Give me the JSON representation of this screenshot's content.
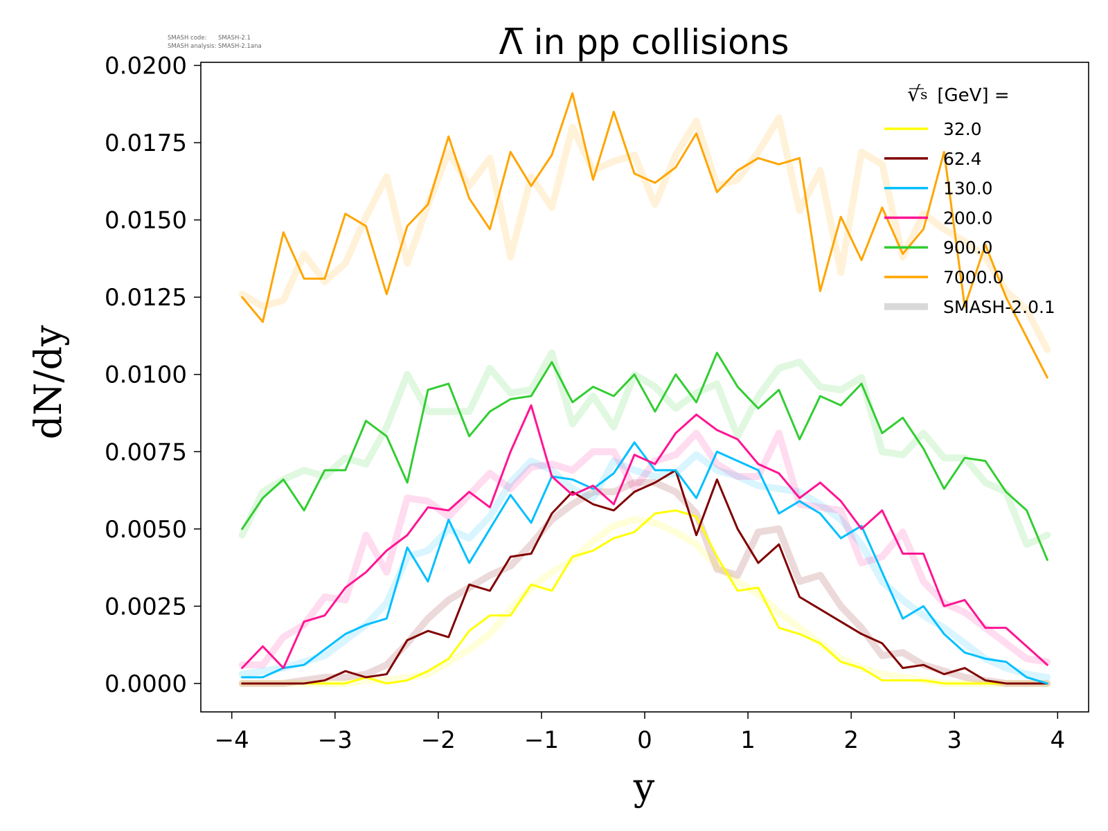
{
  "watermark": {
    "line1_label": "SMASH code:",
    "line1_value": "SMASH-2.1",
    "line2_label": "SMASH analysis:",
    "line2_value": "SMASH-2.1ana"
  },
  "chart_data": {
    "type": "line",
    "title": "Λ̅ in pp collisions",
    "xlabel": "y",
    "ylabel": "dN/dy",
    "xlim": [
      -4.3,
      4.3
    ],
    "ylim": [
      -0.00092,
      0.0201
    ],
    "xticks": [
      -4,
      -3,
      -2,
      -1,
      0,
      1,
      2,
      3,
      4
    ],
    "xtick_labels": [
      "−4",
      "−3",
      "−2",
      "−1",
      "0",
      "1",
      "2",
      "3",
      "4"
    ],
    "yticks": [
      0,
      0.0025,
      0.005,
      0.0075,
      0.01,
      0.0125,
      0.015,
      0.0175,
      0.02
    ],
    "ytick_labels": [
      "0.0000",
      "0.0025",
      "0.0050",
      "0.0075",
      "0.0100",
      "0.0125",
      "0.0150",
      "0.0175",
      "0.0200"
    ],
    "legend": {
      "title_radical": "√",
      "title_var": "s",
      "title_rest": "[GeV] =",
      "position": "upper-right",
      "reference_label": "SMASH-2.0.1",
      "reference_color": "#d9d9d9"
    },
    "x": [
      -3.9,
      -3.7,
      -3.5,
      -3.3,
      -3.1,
      -2.9,
      -2.7,
      -2.5,
      -2.3,
      -2.1,
      -1.9,
      -1.7,
      -1.5,
      -1.3,
      -1.1,
      -0.9,
      -0.7,
      -0.5,
      -0.3,
      -0.1,
      0.1,
      0.3,
      0.5,
      0.7,
      0.9,
      1.1,
      1.3,
      1.5,
      1.7,
      1.9,
      2.1,
      2.3,
      2.5,
      2.7,
      2.9,
      3.1,
      3.3,
      3.5,
      3.7,
      3.9
    ],
    "series": [
      {
        "name": "32.0",
        "color": "#ffff00",
        "values": [
          0,
          0,
          0,
          0,
          0,
          0,
          0.0002,
          0,
          0.0001,
          0.0004,
          0.0008,
          0.0017,
          0.0022,
          0.0022,
          0.0032,
          0.003,
          0.0041,
          0.0043,
          0.0047,
          0.0049,
          0.0055,
          0.0056,
          0.0054,
          0.0041,
          0.003,
          0.0031,
          0.0018,
          0.0016,
          0.0013,
          0.0007,
          0.0005,
          0.0001,
          0.0001,
          0.0001,
          0,
          0,
          0,
          0,
          0,
          0
        ],
        "reference": [
          0,
          0,
          0,
          0,
          0,
          0,
          0.0001,
          0.0001,
          0.0002,
          0.0003,
          0.0007,
          0.0011,
          0.0016,
          0.0024,
          0.0031,
          0.0036,
          0.004,
          0.0046,
          0.0051,
          0.0053,
          0.0052,
          0.0049,
          0.0045,
          0.0038,
          0.0033,
          0.0029,
          0.0023,
          0.0018,
          0.0013,
          0.0008,
          0.0005,
          0.0003,
          0.0002,
          0.0001,
          0,
          0,
          0,
          0,
          0,
          0
        ]
      },
      {
        "name": "62.4",
        "color": "#800000",
        "values": [
          0,
          0,
          0,
          0,
          0.0001,
          0.0004,
          0.0002,
          0.0003,
          0.0014,
          0.0017,
          0.0015,
          0.0032,
          0.003,
          0.0041,
          0.0042,
          0.0055,
          0.0062,
          0.0058,
          0.0056,
          0.0062,
          0.0065,
          0.0069,
          0.0048,
          0.0066,
          0.005,
          0.0039,
          0.0045,
          0.0028,
          0.0024,
          0.002,
          0.0016,
          0.0013,
          0.0005,
          0.0006,
          0.0003,
          0.0005,
          0.0001,
          0,
          0,
          0
        ],
        "reference": [
          0,
          0,
          0,
          0.0001,
          0.0002,
          0.0002,
          0.0003,
          0.0006,
          0.0013,
          0.0021,
          0.0027,
          0.0031,
          0.0035,
          0.0038,
          0.0045,
          0.0053,
          0.0058,
          0.0062,
          0.0062,
          0.0065,
          0.0065,
          0.0062,
          0.0055,
          0.0037,
          0.0035,
          0.0049,
          0.005,
          0.0033,
          0.0035,
          0.0025,
          0.0018,
          0.0009,
          0.001,
          0.0006,
          0.0004,
          0.0002,
          0.0001,
          0,
          0,
          0
        ]
      },
      {
        "name": "130.0",
        "color": "#00bfff",
        "values": [
          0.0002,
          0.0002,
          0.0005,
          0.0006,
          0.0011,
          0.0016,
          0.0019,
          0.0021,
          0.0044,
          0.0033,
          0.0053,
          0.0039,
          0.005,
          0.0061,
          0.0052,
          0.0067,
          0.0066,
          0.0063,
          0.0068,
          0.0078,
          0.0069,
          0.0069,
          0.006,
          0.0075,
          0.0072,
          0.0069,
          0.0055,
          0.0059,
          0.0055,
          0.0047,
          0.0051,
          0.0036,
          0.0021,
          0.0025,
          0.0016,
          0.001,
          0.0008,
          0.0007,
          0.0002,
          0
        ],
        "reference": [
          0.0003,
          0.0004,
          0.0005,
          0.0007,
          0.0009,
          0.0014,
          0.0019,
          0.0026,
          0.0041,
          0.0043,
          0.005,
          0.0047,
          0.0054,
          0.0065,
          0.0072,
          0.0069,
          0.0063,
          0.006,
          0.0072,
          0.0069,
          0.0067,
          0.0068,
          0.0074,
          0.0069,
          0.0067,
          0.0064,
          0.0063,
          0.0062,
          0.0058,
          0.0053,
          0.0045,
          0.0033,
          0.0027,
          0.0022,
          0.0018,
          0.0013,
          0.0008,
          0.0005,
          0.0003,
          0.0002
        ]
      },
      {
        "name": "200.0",
        "color": "#ff1493",
        "values": [
          0.0005,
          0.0012,
          0.0005,
          0.002,
          0.0022,
          0.0031,
          0.0036,
          0.0043,
          0.0048,
          0.0057,
          0.0056,
          0.0062,
          0.0057,
          0.0075,
          0.009,
          0.0067,
          0.0061,
          0.0064,
          0.0058,
          0.0074,
          0.0071,
          0.0081,
          0.0087,
          0.0082,
          0.0079,
          0.0071,
          0.0068,
          0.006,
          0.0065,
          0.0059,
          0.005,
          0.0056,
          0.0042,
          0.0042,
          0.0025,
          0.0027,
          0.0018,
          0.0018,
          0.0012,
          0.0006
        ],
        "reference": [
          0.0006,
          0.0006,
          0.0015,
          0.0019,
          0.0028,
          0.0027,
          0.0048,
          0.0036,
          0.006,
          0.0059,
          0.0054,
          0.0061,
          0.0068,
          0.0063,
          0.007,
          0.0071,
          0.0069,
          0.0075,
          0.0075,
          0.0063,
          0.0072,
          0.0074,
          0.0081,
          0.0071,
          0.0067,
          0.0067,
          0.0081,
          0.0058,
          0.0057,
          0.0056,
          0.0039,
          0.0041,
          0.0049,
          0.0033,
          0.0026,
          0.0023,
          0.0018,
          0.0013,
          0.0008,
          0.0007
        ]
      },
      {
        "name": "900.0",
        "color": "#32cd32",
        "values": [
          0.005,
          0.006,
          0.0066,
          0.0056,
          0.0069,
          0.0069,
          0.0085,
          0.008,
          0.0065,
          0.0095,
          0.0097,
          0.008,
          0.0088,
          0.0092,
          0.0093,
          0.0104,
          0.0091,
          0.0096,
          0.0093,
          0.01,
          0.0088,
          0.01,
          0.0091,
          0.0107,
          0.0096,
          0.0089,
          0.0095,
          0.0079,
          0.0093,
          0.009,
          0.0097,
          0.0081,
          0.0086,
          0.0076,
          0.0063,
          0.0073,
          0.0072,
          0.0062,
          0.0056,
          0.004
        ],
        "reference": [
          0.0048,
          0.0062,
          0.0066,
          0.0069,
          0.0067,
          0.0073,
          0.0071,
          0.0083,
          0.01,
          0.0088,
          0.0088,
          0.0088,
          0.0102,
          0.0094,
          0.0095,
          0.0107,
          0.0084,
          0.0093,
          0.0083,
          0.01,
          0.0096,
          0.0089,
          0.0094,
          0.0097,
          0.008,
          0.0093,
          0.0102,
          0.0104,
          0.0096,
          0.0095,
          0.0099,
          0.0075,
          0.0074,
          0.0081,
          0.0073,
          0.0073,
          0.0065,
          0.0062,
          0.0045,
          0.0048
        ]
      },
      {
        "name": "7000.0",
        "color": "#ffa500",
        "values": [
          0.0125,
          0.0117,
          0.0146,
          0.0131,
          0.0131,
          0.0152,
          0.0148,
          0.0126,
          0.0148,
          0.0155,
          0.0177,
          0.0157,
          0.0147,
          0.0172,
          0.0161,
          0.0171,
          0.0191,
          0.0163,
          0.0185,
          0.0165,
          0.0162,
          0.0167,
          0.0178,
          0.0159,
          0.0166,
          0.017,
          0.0168,
          0.017,
          0.0127,
          0.0151,
          0.0137,
          0.0154,
          0.0139,
          0.0147,
          0.0172,
          0.0122,
          0.0142,
          0.0125,
          0.0112,
          0.0099
        ],
        "reference": [
          0.0126,
          0.0122,
          0.0124,
          0.0139,
          0.013,
          0.0136,
          0.0151,
          0.0164,
          0.0136,
          0.0155,
          0.0172,
          0.0161,
          0.017,
          0.0138,
          0.0164,
          0.0154,
          0.018,
          0.0166,
          0.0169,
          0.0171,
          0.0155,
          0.0171,
          0.0182,
          0.0161,
          0.0163,
          0.0172,
          0.0183,
          0.0153,
          0.0166,
          0.0133,
          0.0172,
          0.0168,
          0.0138,
          0.0152,
          0.0147,
          0.0143,
          0.0138,
          0.0127,
          0.0121,
          0.0108
        ]
      }
    ]
  }
}
